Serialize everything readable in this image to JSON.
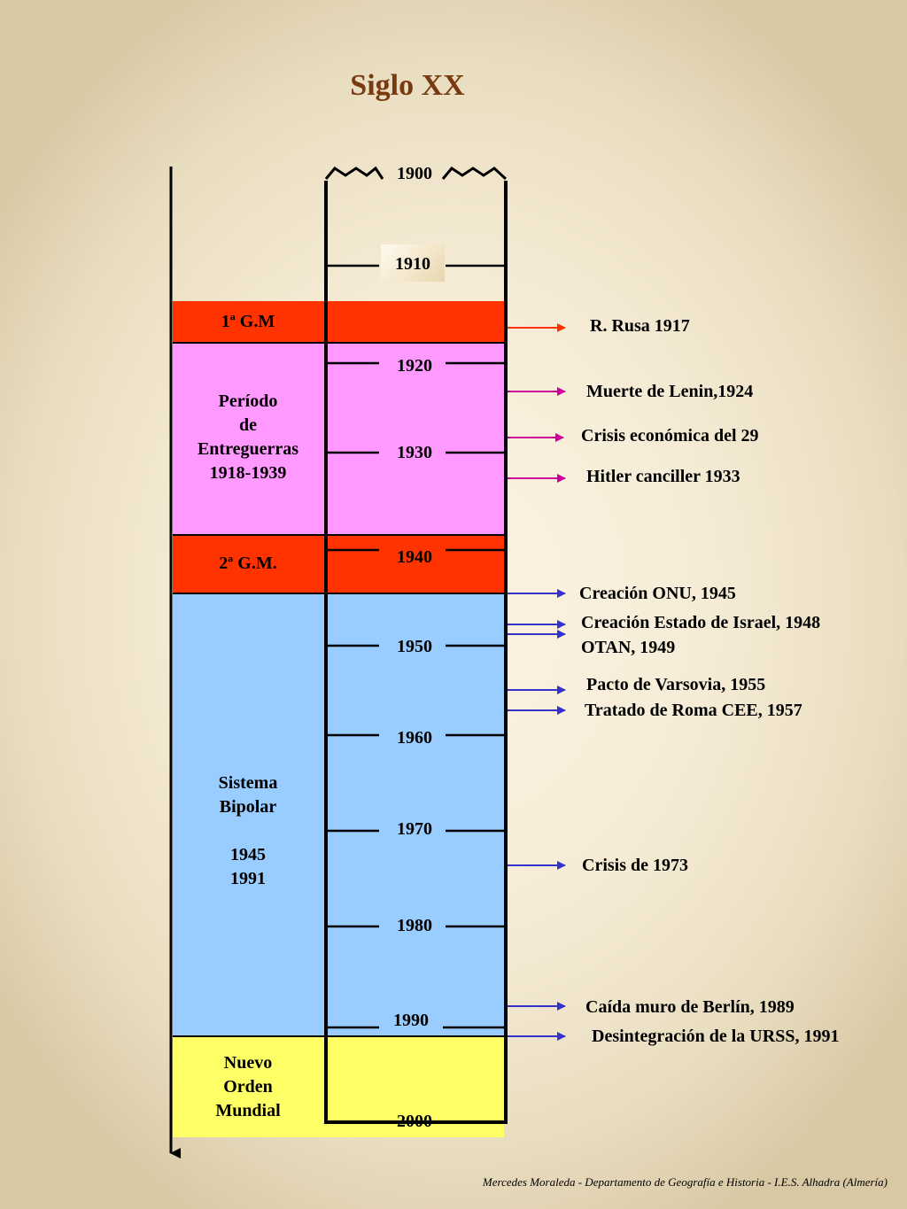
{
  "title": "Siglo XX",
  "bands": [
    {
      "id": "gm1",
      "label": "1ª G.M"
    },
    {
      "id": "entreguerras",
      "label": "Período\nde\nEntreguerras\n1918-1939"
    },
    {
      "id": "gm2",
      "label": "2ª G.M."
    },
    {
      "id": "bipolar",
      "label": "Sistema\nBipolar\n\n1945\n1991"
    },
    {
      "id": "nuevo",
      "label": "Nuevo\nOrden\nMundial"
    }
  ],
  "decades": [
    "1900",
    "1910",
    "1920",
    "1930",
    "1940",
    "1950",
    "1960",
    "1970",
    "1980",
    "1990",
    "2000"
  ],
  "events": [
    {
      "text": "R. Rusa 1917",
      "color": "#ff3300"
    },
    {
      "text": "Muerte de Lenin,1924",
      "color": "#cc0099"
    },
    {
      "text": "Crisis económica del 29",
      "color": "#cc0099"
    },
    {
      "text": "Hitler canciller 1933",
      "color": "#cc0099"
    },
    {
      "text": "Creación ONU, 1945",
      "color": "#3333cc"
    },
    {
      "text": "Creación Estado de Israel, 1948",
      "color": "#3333cc"
    },
    {
      "text": "OTAN, 1949",
      "color": "#3333cc"
    },
    {
      "text": "Pacto de Varsovia, 1955",
      "color": "#3333cc"
    },
    {
      "text": "Tratado de Roma CEE, 1957",
      "color": "#3333cc"
    },
    {
      "text": "Crisis de 1973",
      "color": "#3333cc"
    },
    {
      "text": "Caída muro de Berlín, 1989",
      "color": "#3333cc"
    },
    {
      "text": "Desintegración de la URSS, 1991",
      "color": "#3333cc"
    }
  ],
  "credit": "Mercedes Moraleda - Departamento de Geografía e Historia - I.E.S. Alhadra (Almería)"
}
